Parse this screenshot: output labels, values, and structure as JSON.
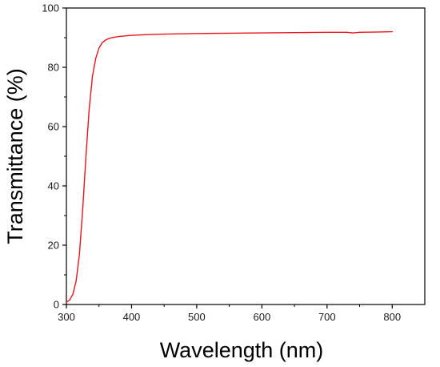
{
  "chart_data": {
    "type": "line",
    "title": "",
    "xlabel": "Wavelength (nm)",
    "ylabel": "Transmittance (%)",
    "xlim": [
      300,
      850
    ],
    "ylim": [
      0,
      100
    ],
    "x_ticks": [
      "300",
      "400",
      "500",
      "600",
      "700",
      "800"
    ],
    "y_ticks": [
      "0",
      "20",
      "40",
      "60",
      "80",
      "100"
    ],
    "grid": false,
    "legend": "none",
    "colors": {
      "line": "#e8141c",
      "axis": "#000000"
    },
    "series": [
      {
        "x": [
          300,
          305,
          310,
          315,
          320,
          325,
          330,
          335,
          340,
          345,
          350,
          355,
          360,
          365,
          370,
          375,
          380,
          390,
          400,
          420,
          450,
          500,
          550,
          600,
          650,
          700,
          730,
          740,
          750,
          780,
          800
        ],
        "y": [
          0.8,
          1.5,
          3.5,
          8,
          17,
          32,
          50,
          66,
          77,
          83,
          86.5,
          88.3,
          89.2,
          89.7,
          90.0,
          90.2,
          90.4,
          90.6,
          90.8,
          91.0,
          91.2,
          91.4,
          91.5,
          91.6,
          91.7,
          91.8,
          91.8,
          91.6,
          91.8,
          91.9,
          92.0
        ]
      }
    ]
  }
}
